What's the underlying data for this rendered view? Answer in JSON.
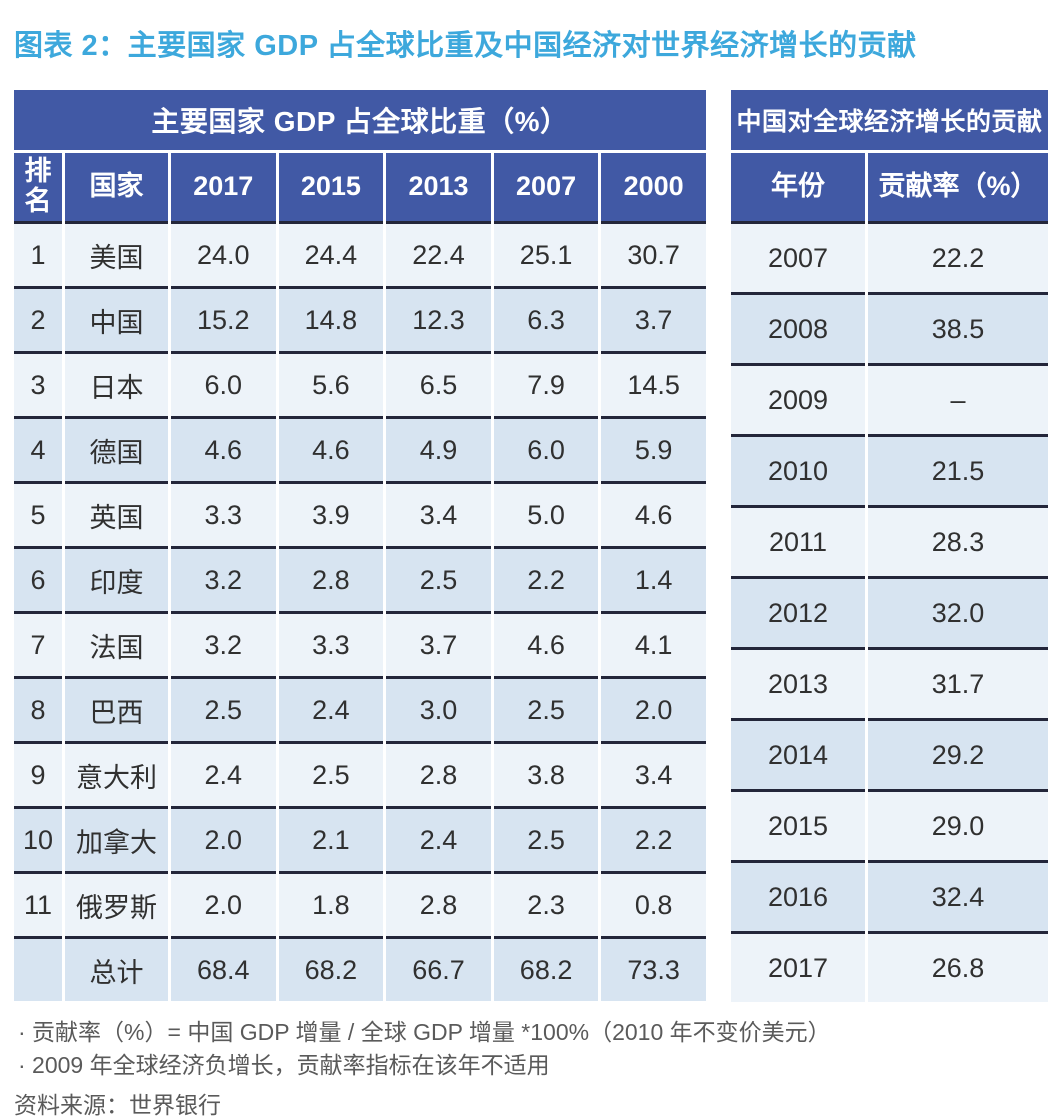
{
  "page": {
    "title": "图表 2：主要国家 GDP 占全球比重及中国经济对世界经济增长的贡献"
  },
  "colors": {
    "title_text": "#3DA8DC",
    "header_bg": "#4159A5",
    "header_text": "#FFFFFF",
    "row_light": "#EDF3F9",
    "row_blue": "#D7E4F1",
    "row_divider": "#23263A",
    "body_text": "#303030",
    "note_text": "#5A5A5A"
  },
  "chart_data": [
    {
      "type": "table",
      "title": "主要国家 GDP 占全球比重（%）",
      "columns": [
        "排名",
        "国家",
        "2017",
        "2015",
        "2013",
        "2007",
        "2000"
      ],
      "rows": [
        [
          "1",
          "美国",
          "24.0",
          "24.4",
          "22.4",
          "25.1",
          "30.7"
        ],
        [
          "2",
          "中国",
          "15.2",
          "14.8",
          "12.3",
          "6.3",
          "3.7"
        ],
        [
          "3",
          "日本",
          "6.0",
          "5.6",
          "6.5",
          "7.9",
          "14.5"
        ],
        [
          "4",
          "德国",
          "4.6",
          "4.6",
          "4.9",
          "6.0",
          "5.9"
        ],
        [
          "5",
          "英国",
          "3.3",
          "3.9",
          "3.4",
          "5.0",
          "4.6"
        ],
        [
          "6",
          "印度",
          "3.2",
          "2.8",
          "2.5",
          "2.2",
          "1.4"
        ],
        [
          "7",
          "法国",
          "3.2",
          "3.3",
          "3.7",
          "4.6",
          "4.1"
        ],
        [
          "8",
          "巴西",
          "2.5",
          "2.4",
          "3.0",
          "2.5",
          "2.0"
        ],
        [
          "9",
          "意大利",
          "2.4",
          "2.5",
          "2.8",
          "3.8",
          "3.4"
        ],
        [
          "10",
          "加拿大",
          "2.0",
          "2.1",
          "2.4",
          "2.5",
          "2.2"
        ],
        [
          "11",
          "俄罗斯",
          "2.0",
          "1.8",
          "2.8",
          "2.3",
          "0.8"
        ],
        [
          "",
          "总计",
          "68.4",
          "68.2",
          "66.7",
          "68.2",
          "73.3"
        ]
      ]
    },
    {
      "type": "table",
      "title": "中国对全球经济增长的贡献",
      "columns": [
        "年份",
        "贡献率（%）"
      ],
      "rows": [
        [
          "2007",
          "22.2"
        ],
        [
          "2008",
          "38.5"
        ],
        [
          "2009",
          "–"
        ],
        [
          "2010",
          "21.5"
        ],
        [
          "2011",
          "28.3"
        ],
        [
          "2012",
          "32.0"
        ],
        [
          "2013",
          "31.7"
        ],
        [
          "2014",
          "29.2"
        ],
        [
          "2015",
          "29.0"
        ],
        [
          "2016",
          "32.4"
        ],
        [
          "2017",
          "26.8"
        ]
      ]
    }
  ],
  "notes": [
    "· 贡献率（%）= 中国 GDP 增量 / 全球 GDP 增量 *100%（2010 年不变价美元）",
    "· 2009 年全球经济负增长，贡献率指标在该年不适用"
  ],
  "source": "资料来源：世界银行"
}
